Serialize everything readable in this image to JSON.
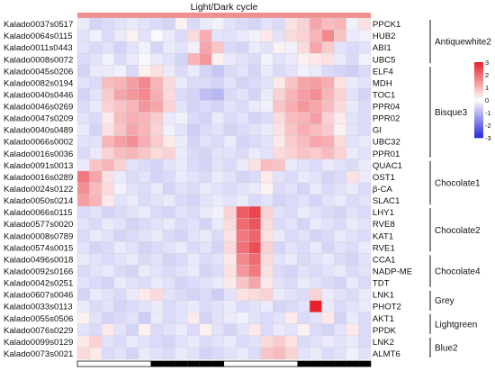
{
  "chart_data": {
    "type": "heatmap",
    "title": "Light/Dark cycle",
    "rows": [
      "Kalado0037s0517",
      "Kalado0064s0115",
      "Kalado0011s0443",
      "Kalado0008s0072",
      "Kalado0045s0206",
      "Kalado0082s0194",
      "Kalado0040s0446",
      "Kalado0046s0269",
      "Kalado0047s0209",
      "Kalado0040s0489",
      "Kalado0066s0002",
      "Kalado0016s0036",
      "Kalado0091s0013",
      "Kalado0016s0289",
      "Kalado0024s0122",
      "Kalado0050s0214",
      "Kalado0066s0115",
      "Kalado0577s0020",
      "Kalado0008s0789",
      "Kalado0574s0015",
      "Kalado0496s0018",
      "Kalado0092s0166",
      "Kalado0042s0251",
      "Kalado0607s0046",
      "Kalado0033s0113",
      "Kalado0055s0506",
      "Kalado0076s0229",
      "Kalado0099s0129",
      "Kalado0073s0021"
    ],
    "genes": [
      "PPCK1",
      "HUB2",
      "ABI1",
      "UBC5",
      "ELF4",
      "MDH",
      "TOC1",
      "PPR04",
      "PPR02",
      "GI",
      "UBC32",
      "PPR01",
      "QUAC1",
      "OST1",
      "β-CA",
      "SLAC1",
      "LHY1",
      "RVE8",
      "KAT1",
      "RVE1",
      "CCA1",
      "NADP-ME",
      "TDT",
      "LNK1",
      "PHOT2",
      "AKT1",
      "PPDK",
      "LNK2",
      "ALMT6"
    ],
    "groups": [
      {
        "name": "Antiquewhite2",
        "start": 0,
        "end": 3
      },
      {
        "name": "Bisque3",
        "start": 4,
        "end": 11
      },
      {
        "name": "Chocolate1",
        "start": 12,
        "end": 15
      },
      {
        "name": "Chocolate2",
        "start": 16,
        "end": 19
      },
      {
        "name": "Chocolate4",
        "start": 20,
        "end": 22
      },
      {
        "name": "Grey",
        "start": 23,
        "end": 24
      },
      {
        "name": "Lightgreen",
        "start": 25,
        "end": 26
      },
      {
        "name": "Blue2",
        "start": 27,
        "end": 28
      }
    ],
    "n_columns": 24,
    "light_dark": [
      "light",
      "light",
      "light",
      "light",
      "light",
      "light",
      "dark",
      "dark",
      "dark",
      "dark",
      "dark",
      "dark",
      "light",
      "light",
      "light",
      "light",
      "light",
      "light",
      "dark",
      "dark",
      "dark",
      "dark",
      "dark",
      "dark"
    ],
    "colorbar": {
      "min": -3,
      "max": 3,
      "ticks": [
        3,
        2,
        1,
        0,
        -1,
        -2,
        -3
      ]
    },
    "colors": {
      "low": "#2828d8",
      "mid": "#ffffff",
      "high": "#e8202a",
      "header_band": "#f0908e",
      "grid": "#d0d0d8"
    },
    "values": [
      [
        -0.3,
        -0.6,
        -0.5,
        -0.4,
        -0.3,
        -0.4,
        -0.5,
        -0.6,
        0.2,
        -0.5,
        -0.3,
        -0.2,
        -0.4,
        -0.5,
        -0.6,
        -0.4,
        -0.5,
        0.4,
        0.6,
        1.2,
        0.9,
        1.0,
        -0.2,
        0.4
      ],
      [
        -0.4,
        -0.2,
        -0.5,
        -0.3,
        0.2,
        -0.4,
        -0.1,
        -0.3,
        -0.5,
        0.5,
        1.1,
        -0.4,
        -0.4,
        -0.3,
        -0.2,
        0.3,
        -0.4,
        0.5,
        0.6,
        1.0,
        1.6,
        0.8,
        -0.3,
        -0.2
      ],
      [
        -0.4,
        -0.5,
        -0.4,
        -0.6,
        -0.4,
        -0.2,
        -0.6,
        -0.3,
        -0.4,
        -0.2,
        1.2,
        0.8,
        -0.5,
        -0.6,
        -0.3,
        -0.4,
        0.2,
        -0.2,
        0.5,
        1.2,
        0.7,
        -0.4,
        -0.5,
        -0.4
      ],
      [
        -0.5,
        -0.4,
        -0.2,
        -0.5,
        -0.3,
        -0.1,
        -0.3,
        -0.4,
        -0.6,
        1.0,
        1.4,
        0.2,
        -0.3,
        -0.4,
        -0.5,
        -0.2,
        -0.4,
        -0.3,
        0.2,
        0.3,
        0.4,
        -0.3,
        -0.5,
        -0.2
      ],
      [
        -0.6,
        -0.3,
        -0.3,
        -0.2,
        -0.5,
        0.2,
        0.4,
        -0.3,
        -0.5,
        -0.3,
        -0.6,
        -0.8,
        -0.5,
        -0.4,
        -0.6,
        -0.3,
        -0.5,
        -0.4,
        -0.2,
        -0.3,
        -0.5,
        -0.6,
        -0.7,
        -0.5
      ],
      [
        -0.4,
        -0.5,
        0.9,
        1.0,
        1.3,
        1.6,
        1.0,
        0.5,
        -0.3,
        -0.5,
        -0.5,
        -0.6,
        -0.4,
        -0.6,
        -0.5,
        -0.4,
        0.3,
        0.8,
        1.2,
        1.3,
        1.1,
        0.4,
        -0.3,
        -0.4
      ],
      [
        -0.6,
        -0.4,
        0.7,
        1.2,
        1.4,
        1.6,
        1.1,
        0.5,
        -0.5,
        -0.6,
        -0.9,
        -1.0,
        -0.5,
        -0.4,
        -0.6,
        -0.3,
        0.6,
        1.0,
        1.3,
        1.5,
        1.0,
        0.6,
        -0.4,
        -0.6
      ],
      [
        -0.5,
        -0.3,
        0.6,
        0.8,
        1.0,
        1.4,
        1.2,
        0.6,
        -0.4,
        -0.6,
        -0.5,
        -0.6,
        -0.4,
        -0.5,
        -0.3,
        -0.2,
        0.8,
        1.1,
        1.4,
        1.2,
        0.9,
        0.5,
        -0.3,
        -0.5
      ],
      [
        -0.4,
        -0.5,
        0.3,
        0.9,
        1.1,
        1.0,
        0.7,
        -0.3,
        -0.2,
        -0.5,
        -0.6,
        -0.3,
        -0.5,
        -0.4,
        -0.6,
        -0.5,
        0.5,
        0.9,
        1.0,
        1.3,
        0.6,
        0.3,
        -0.4,
        -0.5
      ],
      [
        -0.3,
        -0.6,
        0.4,
        0.8,
        1.2,
        1.0,
        0.6,
        -0.2,
        -0.4,
        -0.7,
        -0.5,
        -0.4,
        -0.6,
        -0.5,
        -0.4,
        -0.3,
        0.4,
        0.8,
        1.1,
        0.9,
        0.7,
        0.2,
        -0.4,
        -0.5
      ],
      [
        -0.4,
        -0.4,
        1.0,
        1.3,
        1.5,
        1.1,
        0.7,
        0.3,
        -0.3,
        -0.6,
        -0.4,
        -0.5,
        -0.3,
        -0.6,
        -0.5,
        -0.4,
        0.3,
        0.7,
        0.9,
        1.2,
        1.1,
        0.5,
        -0.4,
        -0.3
      ],
      [
        -0.5,
        -0.3,
        0.6,
        0.9,
        1.0,
        0.8,
        0.5,
        0.6,
        -0.3,
        -0.5,
        -0.6,
        -0.4,
        -0.4,
        -0.5,
        -0.3,
        -0.4,
        0.5,
        0.6,
        0.8,
        0.7,
        0.9,
        0.6,
        -0.3,
        -0.4
      ],
      [
        -0.3,
        0.8,
        1.0,
        0.6,
        -0.4,
        -0.5,
        -0.6,
        -0.4,
        -0.3,
        -0.5,
        -0.6,
        -0.4,
        -0.5,
        -0.3,
        0.4,
        0.9,
        0.8,
        -0.3,
        -0.4,
        -0.5,
        -0.3,
        -0.4,
        -0.5,
        -0.3
      ],
      [
        1.8,
        1.2,
        0.4,
        -0.3,
        -0.5,
        -0.4,
        -0.6,
        -0.5,
        -0.3,
        -0.4,
        -0.5,
        -0.3,
        -0.4,
        -0.6,
        -0.5,
        0.3,
        -0.4,
        -0.5,
        -0.3,
        -0.4,
        -0.6,
        -0.5,
        0.4,
        -0.3
      ],
      [
        1.5,
        0.9,
        0.5,
        -0.2,
        -0.4,
        -0.5,
        -0.3,
        -0.6,
        -0.4,
        -0.5,
        -0.3,
        -0.4,
        -0.5,
        -0.4,
        -0.3,
        0.2,
        -0.5,
        -0.4,
        -0.6,
        -0.3,
        -0.5,
        -0.4,
        -0.3,
        -0.5
      ],
      [
        1.3,
        1.0,
        0.3,
        -0.4,
        -0.3,
        -0.5,
        -0.4,
        -0.3,
        -0.5,
        -0.6,
        -0.4,
        -0.3,
        -0.4,
        -0.3,
        -0.5,
        -0.4,
        -0.6,
        -0.5,
        -0.4,
        -0.6,
        -0.4,
        -0.3,
        -0.5,
        -0.4
      ],
      [
        -0.5,
        -0.4,
        -0.6,
        -0.5,
        -0.4,
        -0.3,
        -0.5,
        -0.6,
        -0.4,
        -0.5,
        -0.3,
        -0.2,
        0.6,
        2.2,
        2.5,
        0.6,
        -0.4,
        -0.5,
        -0.3,
        -0.4,
        -0.5,
        -0.6,
        -0.4,
        -0.5
      ],
      [
        -0.4,
        -0.5,
        -0.3,
        -0.4,
        -0.6,
        -0.5,
        -0.4,
        -0.3,
        -0.5,
        -0.4,
        -0.6,
        -0.3,
        0.5,
        2.0,
        2.3,
        0.5,
        -0.5,
        -0.4,
        -0.6,
        -0.3,
        -0.4,
        -0.5,
        -0.3,
        -0.4
      ],
      [
        -0.5,
        -0.3,
        -0.4,
        -0.6,
        -0.5,
        -0.4,
        -0.3,
        -0.5,
        -0.6,
        -0.4,
        -0.3,
        -0.5,
        0.4,
        1.8,
        2.1,
        0.4,
        -0.3,
        -0.5,
        -0.4,
        -0.6,
        -0.5,
        -0.3,
        -0.4,
        -0.5
      ],
      [
        -0.4,
        -0.6,
        -0.5,
        -0.3,
        -0.4,
        -0.6,
        -0.5,
        -0.4,
        -0.3,
        -0.5,
        -0.4,
        -0.6,
        0.5,
        1.9,
        2.4,
        0.6,
        -0.6,
        -0.4,
        -0.5,
        -0.3,
        -0.6,
        -0.4,
        -0.5,
        -0.3
      ],
      [
        -0.3,
        -0.4,
        -0.5,
        -0.4,
        -0.3,
        -0.5,
        -0.4,
        -0.6,
        -0.5,
        -0.3,
        -0.5,
        -0.4,
        0.3,
        1.6,
        2.0,
        0.5,
        -0.4,
        -0.3,
        -0.5,
        -0.4,
        -0.3,
        -0.5,
        -0.6,
        -0.4
      ],
      [
        -0.5,
        -0.4,
        -0.3,
        -0.5,
        -0.6,
        -0.3,
        -0.4,
        -0.5,
        -0.4,
        -0.3,
        -0.6,
        -0.5,
        0.4,
        1.4,
        1.8,
        0.4,
        -0.5,
        -0.6,
        -0.4,
        -0.5,
        -0.4,
        -0.3,
        -0.5,
        -0.4
      ],
      [
        -0.4,
        -0.5,
        -0.6,
        -0.3,
        -0.4,
        -0.5,
        -0.3,
        -0.4,
        -0.6,
        -0.5,
        -0.4,
        -0.3,
        0.3,
        0.8,
        1.2,
        0.3,
        -0.4,
        -0.5,
        -0.3,
        -0.4,
        -0.5,
        -0.6,
        -0.3,
        -0.5
      ],
      [
        -0.6,
        -0.3,
        -0.4,
        -0.5,
        -0.3,
        0.3,
        0.5,
        -0.4,
        -0.5,
        -0.6,
        -0.5,
        -0.7,
        -0.4,
        0.4,
        0.5,
        0.6,
        -0.3,
        -0.4,
        -0.5,
        0.6,
        -0.3,
        -0.4,
        -0.5,
        -0.3
      ],
      [
        -0.3,
        -0.5,
        -0.4,
        -0.6,
        -0.5,
        -0.4,
        -0.3,
        -0.5,
        -0.4,
        -0.3,
        -0.5,
        -0.4,
        -0.3,
        -0.5,
        -0.4,
        -0.3,
        -0.6,
        -0.5,
        -0.4,
        3.0,
        -0.3,
        -0.5,
        -0.4,
        -0.3
      ],
      [
        0.2,
        -0.4,
        -0.6,
        -0.5,
        -0.4,
        -0.7,
        -0.3,
        -0.5,
        -0.4,
        0.3,
        -0.6,
        -0.4,
        -0.3,
        -0.2,
        -0.4,
        -0.5,
        -0.4,
        0.3,
        -0.5,
        -0.4,
        0.3,
        -0.6,
        -0.3,
        -0.5
      ],
      [
        -0.4,
        -0.5,
        0.3,
        -0.4,
        -0.6,
        0.2,
        -0.5,
        -0.4,
        -0.3,
        -0.5,
        0.2,
        -0.4,
        -0.6,
        -0.4,
        0.3,
        -0.5,
        -0.3,
        -0.4,
        0.2,
        -0.5,
        -0.6,
        -0.4,
        0.3,
        -0.5
      ],
      [
        0.3,
        0.6,
        -0.4,
        -0.5,
        -0.3,
        -0.4,
        -0.5,
        -0.6,
        -0.4,
        -0.3,
        -0.5,
        -0.4,
        -0.3,
        -0.5,
        -0.4,
        0.5,
        0.7,
        0.4,
        -0.5,
        -0.4,
        -0.3,
        -0.4,
        -0.3,
        -0.5
      ],
      [
        0.5,
        0.3,
        -0.5,
        -0.4,
        -0.6,
        -0.3,
        -0.4,
        -0.5,
        -0.3,
        -0.4,
        -0.6,
        -0.5,
        -0.4,
        -0.3,
        -0.5,
        0.8,
        0.9,
        0.6,
        -0.4,
        -0.3,
        -0.5,
        -0.4,
        -0.2,
        -0.4
      ]
    ]
  }
}
